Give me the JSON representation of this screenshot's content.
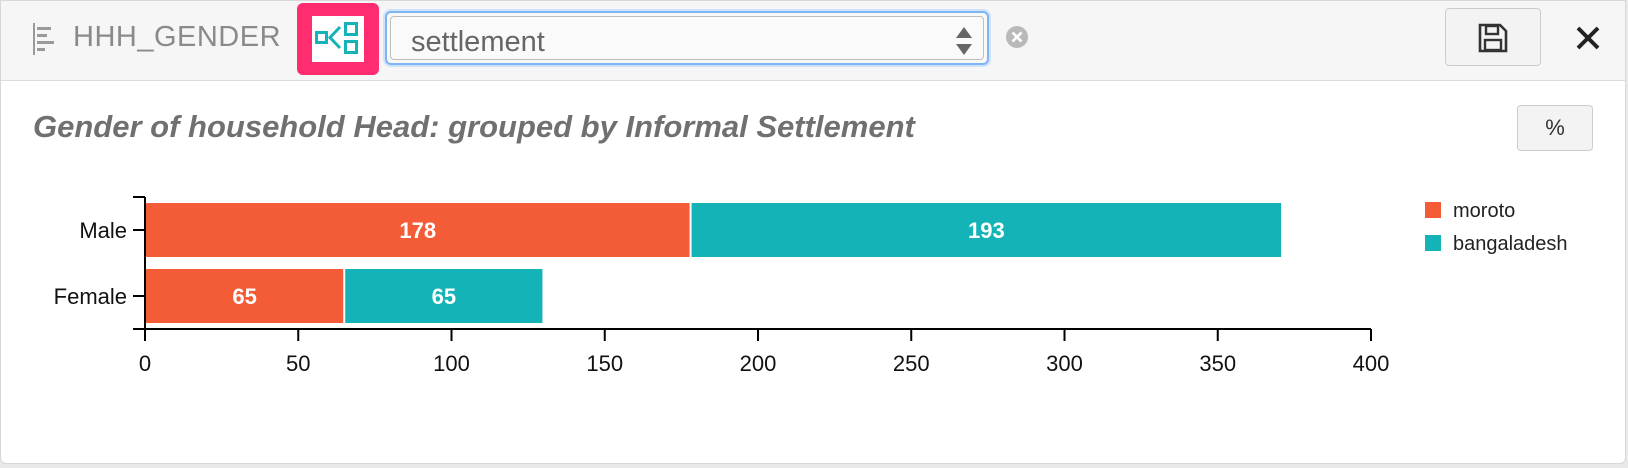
{
  "toolbar": {
    "field_name": "HHH_GENDER",
    "group_by_select": {
      "value": "settlement"
    },
    "icons": [
      "bar-chart-icon",
      "group-by-icon",
      "up-down-arrows-icon",
      "clear-icon",
      "save-icon",
      "close-icon"
    ]
  },
  "chart_header": {
    "title": "Gender of household Head: grouped by Informal Settlement",
    "percent_label": "%"
  },
  "chart_data": {
    "type": "bar",
    "orientation": "horizontal",
    "stacked": true,
    "title": "Gender of household Head: grouped by Informal Settlement",
    "categories": [
      "Male",
      "Female"
    ],
    "series": [
      {
        "name": "moroto",
        "color": "#f45b37",
        "values": [
          178,
          65
        ]
      },
      {
        "name": "bangaladesh",
        "color": "#13b3b8",
        "values": [
          193,
          65
        ]
      }
    ],
    "xlim": [
      0,
      400
    ],
    "xticks": [
      "0",
      "50",
      "100",
      "150",
      "200",
      "250",
      "300",
      "350",
      "400"
    ],
    "grid": false,
    "legend_position": "right"
  }
}
